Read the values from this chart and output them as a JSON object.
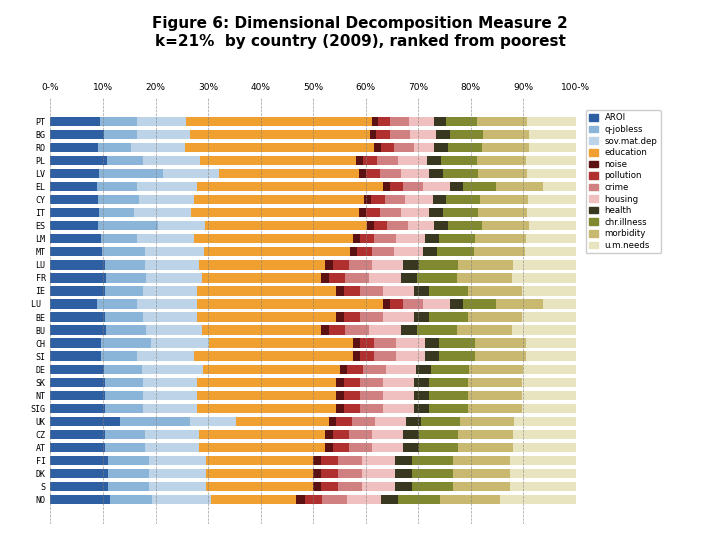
{
  "title": "Figure 6: Dimensional Decomposition Measure 2\nk=21%  by country (2009), ranked from poorest",
  "countries": [
    "PT",
    "BG",
    "RO",
    "PL",
    "LV",
    "EL",
    "CY",
    "IT",
    "ES",
    "LM",
    "MT",
    "LU",
    "FR",
    "IE",
    "LU ",
    "BE",
    "BU",
    "CH",
    "SI",
    "DE",
    "SK",
    "NT",
    "SIG",
    "UK",
    "CZ",
    "AT",
    "FI",
    "DK",
    "S",
    "NO"
  ],
  "categories": [
    "AROI",
    "q-jobless",
    "sov.mat.dep",
    "education",
    "noise",
    "pollution",
    "crime",
    "housing",
    "health",
    "chr.illness",
    "morbidity",
    "u.m.needs"
  ],
  "colors": [
    "#2e5fa3",
    "#8ab4d8",
    "#bdd4e8",
    "#f0a030",
    "#5c1212",
    "#b03030",
    "#d08080",
    "#f0c0c0",
    "#383820",
    "#808830",
    "#c8b870",
    "#e8e4c0"
  ],
  "data": [
    [
      8,
      6,
      8,
      30,
      1,
      2,
      3,
      4,
      2,
      5,
      8,
      8
    ],
    [
      8,
      5,
      8,
      27,
      1,
      2,
      3,
      4,
      2,
      5,
      7,
      7
    ],
    [
      7,
      5,
      8,
      28,
      1,
      2,
      3,
      3,
      2,
      5,
      7,
      7
    ],
    [
      8,
      5,
      8,
      22,
      1,
      2,
      3,
      4,
      2,
      5,
      7,
      7
    ],
    [
      7,
      9,
      8,
      20,
      1,
      2,
      3,
      4,
      2,
      5,
      7,
      7
    ],
    [
      7,
      6,
      9,
      28,
      1,
      2,
      3,
      4,
      2,
      5,
      7,
      5
    ],
    [
      7,
      6,
      8,
      25,
      1,
      2,
      3,
      4,
      2,
      5,
      7,
      7
    ],
    [
      7,
      5,
      8,
      24,
      1,
      2,
      3,
      4,
      2,
      5,
      7,
      7
    ],
    [
      7,
      9,
      7,
      24,
      1,
      2,
      3,
      4,
      2,
      5,
      7,
      7
    ],
    [
      7,
      5,
      8,
      22,
      1,
      2,
      3,
      4,
      2,
      5,
      7,
      7
    ],
    [
      7,
      6,
      8,
      20,
      1,
      2,
      3,
      4,
      2,
      5,
      7,
      7
    ],
    [
      7,
      5,
      7,
      16,
      1,
      2,
      3,
      4,
      2,
      5,
      7,
      8
    ],
    [
      7,
      5,
      7,
      15,
      1,
      2,
      3,
      4,
      2,
      5,
      7,
      8
    ],
    [
      7,
      5,
      7,
      18,
      1,
      2,
      3,
      4,
      2,
      5,
      7,
      7
    ],
    [
      7,
      6,
      9,
      28,
      1,
      2,
      3,
      4,
      2,
      5,
      7,
      5
    ],
    [
      7,
      5,
      7,
      18,
      1,
      2,
      3,
      4,
      2,
      5,
      7,
      7
    ],
    [
      7,
      5,
      7,
      15,
      1,
      2,
      3,
      4,
      2,
      5,
      7,
      8
    ],
    [
      7,
      7,
      8,
      20,
      1,
      2,
      3,
      4,
      2,
      5,
      7,
      7
    ],
    [
      7,
      5,
      8,
      22,
      1,
      2,
      3,
      4,
      2,
      5,
      7,
      7
    ],
    [
      7,
      5,
      8,
      18,
      1,
      2,
      3,
      4,
      2,
      5,
      7,
      7
    ],
    [
      7,
      5,
      7,
      18,
      1,
      2,
      3,
      4,
      2,
      5,
      7,
      7
    ],
    [
      7,
      5,
      7,
      18,
      1,
      2,
      3,
      4,
      2,
      5,
      7,
      7
    ],
    [
      7,
      5,
      7,
      18,
      1,
      2,
      3,
      4,
      2,
      5,
      7,
      7
    ],
    [
      9,
      9,
      6,
      12,
      1,
      2,
      3,
      4,
      2,
      5,
      7,
      8
    ],
    [
      7,
      5,
      7,
      16,
      1,
      2,
      3,
      4,
      2,
      5,
      7,
      8
    ],
    [
      7,
      5,
      7,
      16,
      1,
      2,
      3,
      4,
      2,
      5,
      7,
      8
    ],
    [
      7,
      5,
      7,
      13,
      1,
      2,
      3,
      4,
      2,
      5,
      7,
      8
    ],
    [
      7,
      5,
      7,
      13,
      1,
      2,
      3,
      4,
      2,
      5,
      7,
      8
    ],
    [
      7,
      5,
      7,
      13,
      1,
      2,
      3,
      4,
      2,
      5,
      7,
      8
    ],
    [
      7,
      5,
      7,
      10,
      1,
      2,
      3,
      4,
      2,
      5,
      7,
      9
    ]
  ],
  "figsize": [
    7.2,
    5.4
  ],
  "dpi": 100,
  "bar_height": 0.72,
  "xlim": [
    0,
    100
  ],
  "xlabel_ticks": [
    0,
    10,
    20,
    30,
    40,
    50,
    60,
    70,
    80,
    90,
    100
  ],
  "xlabel_labels": [
    "0-%",
    "10%",
    "20%",
    "30%",
    "40%",
    "50%",
    "60%",
    "70%",
    "80%",
    "90%",
    "100-%"
  ]
}
